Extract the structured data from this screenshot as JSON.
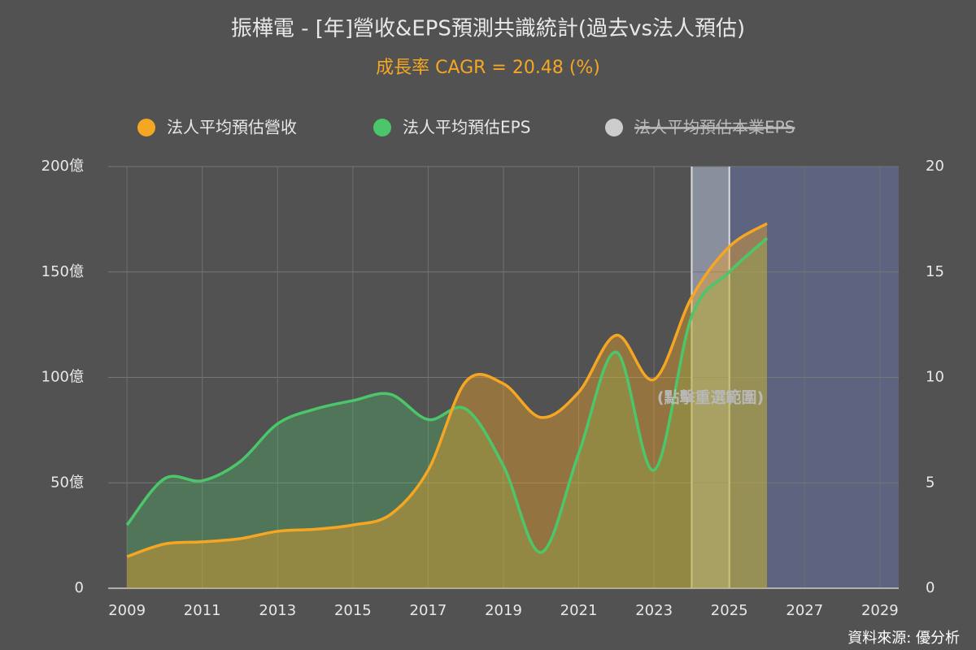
{
  "chart_data": {
    "type": "area",
    "title": "振樺電 - [年]營收&EPS預測共識統計(過去vs法人預估)",
    "subtitle": "成長率 CAGR = 20.48 (%)",
    "annotation": "(點擊重選範圍)",
    "source": "資料來源: 優分析",
    "x": [
      2009,
      2010,
      2011,
      2012,
      2013,
      2014,
      2015,
      2016,
      2017,
      2018,
      2019,
      2020,
      2021,
      2022,
      2023,
      2024,
      2025,
      2026
    ],
    "series": [
      {
        "name": "法人平均預估營收",
        "color": "#f5a623",
        "axis": "y",
        "values": [
          15,
          21,
          22,
          23.5,
          27,
          28,
          30,
          35,
          56,
          98,
          97,
          81,
          93,
          120,
          99,
          138,
          162,
          173
        ]
      },
      {
        "name": "法人平均預估EPS",
        "color": "#4cc66a",
        "axis": "y2",
        "values": [
          3,
          5.2,
          5.1,
          6,
          7.8,
          8.5,
          8.9,
          9.2,
          8,
          8.5,
          5.8,
          1.7,
          6.4,
          11.2,
          5.6,
          12.9,
          15,
          16.6
        ]
      },
      {
        "name": "法人平均預估本業EPS",
        "color": "#cccccc",
        "hidden": true
      }
    ],
    "xlim": [
      2008.5,
      2029.5
    ],
    "xticks": [
      2009,
      2011,
      2013,
      2015,
      2017,
      2019,
      2021,
      2023,
      2025,
      2027,
      2029
    ],
    "ylim": [
      0,
      200
    ],
    "yticks": [
      {
        "value": 0,
        "label": "0"
      },
      {
        "value": 50,
        "label": "50億"
      },
      {
        "value": 100,
        "label": "100億"
      },
      {
        "value": 150,
        "label": "150億"
      },
      {
        "value": 200,
        "label": "200億"
      }
    ],
    "y2lim": [
      0,
      20
    ],
    "y2ticks": [
      0,
      5,
      10,
      15,
      20
    ],
    "selection": [
      2024,
      2025
    ],
    "forecast_from": 2025,
    "grid": true,
    "legend": "top"
  }
}
